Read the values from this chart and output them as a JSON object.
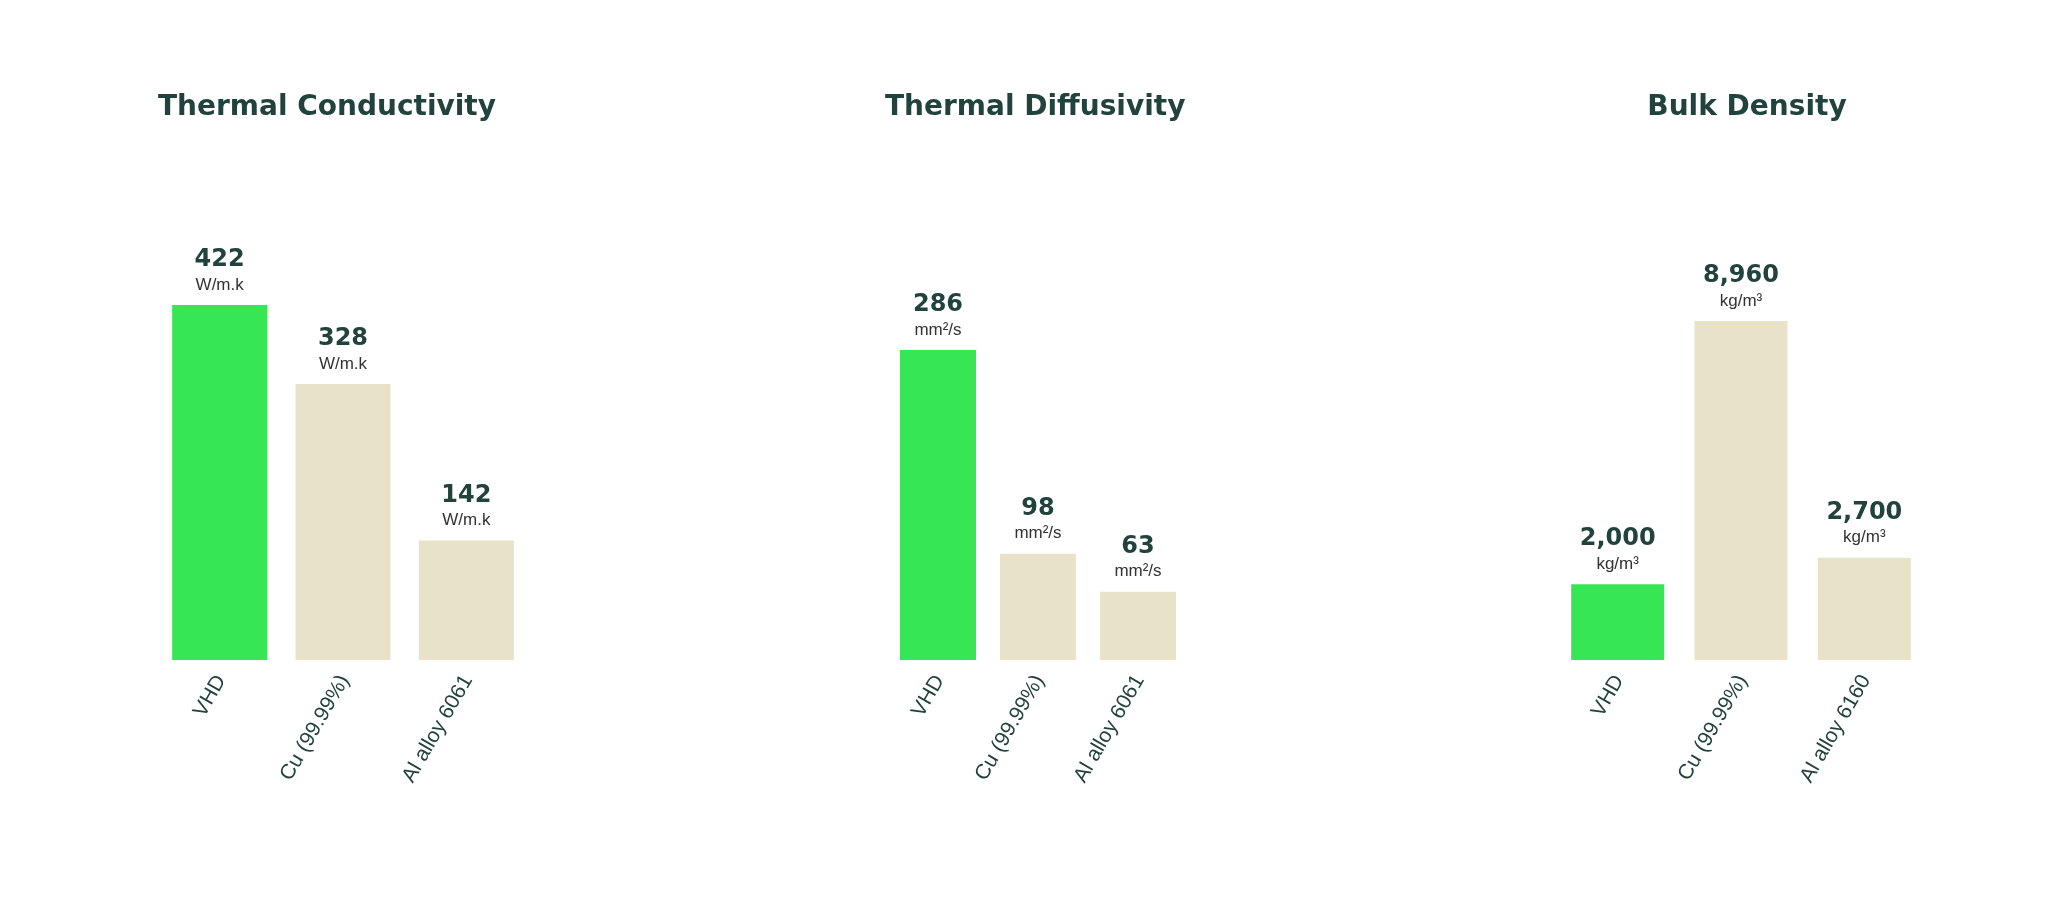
{
  "chart_data": [
    {
      "type": "bar",
      "title": "Thermal Conductivity",
      "categories": [
        "VHD",
        "Cu (99.99%)",
        "Al alloy 6061"
      ],
      "values": [
        422,
        328,
        142
      ],
      "colors": [
        "#37e655",
        "#e8e2c9",
        "#e8e2c9"
      ],
      "value_labels": [
        "422\nW/m.k",
        "328\nW/m.k",
        "142\nW/m.k"
      ]
    },
    {
      "type": "bar",
      "title": "Thermal Diffusivity",
      "categories": [
        "VHD",
        "Cu (99.99%)",
        "Al alloy 6061"
      ],
      "values": [
        286,
        98,
        63
      ],
      "colors": [
        "#37e655",
        "#e8e2c9",
        "#e8e2c9"
      ],
      "value_labels": [
        "286\nmm²/s",
        "98\nmm²/s",
        "63\nmm²/s"
      ]
    },
    {
      "type": "bar",
      "title": "Bulk Density",
      "categories": [
        "VHD",
        "Cu (99.99%)",
        "Al alloy 6160"
      ],
      "values": [
        2000,
        8960,
        2700
      ],
      "colors": [
        "#37e655",
        "#e8e2c9",
        "#e8e2c9"
      ],
      "value_labels": [
        "2,000\nkg/m³",
        "8,960\nkg/m³",
        "2,700\nkg/m³"
      ]
    }
  ]
}
